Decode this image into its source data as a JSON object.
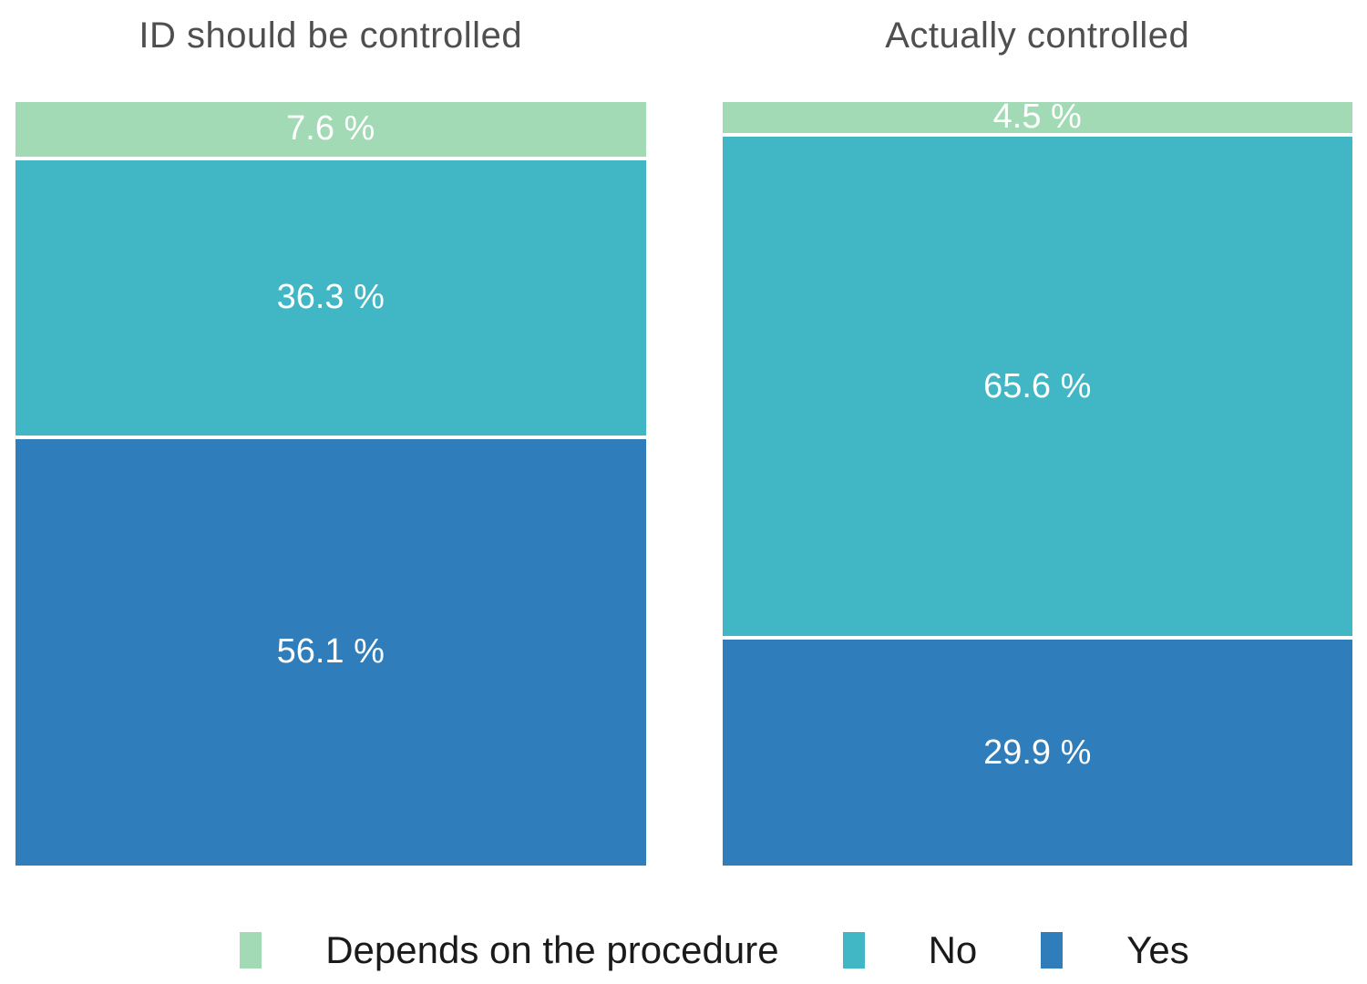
{
  "chart_data": {
    "type": "bar",
    "subtype": "stacked-100-percent",
    "orientation": "vertical",
    "grid": false,
    "legend_position": "bottom",
    "categories": [
      "Depends on the procedure",
      "No",
      "Yes"
    ],
    "colors": {
      "depends": "#a1dab4",
      "no": "#41b6c4",
      "yes": "#2f7ebb"
    },
    "label_color": "#ffffff",
    "title_color": "#4f4f4f",
    "columns": [
      {
        "title": "ID should be controlled",
        "segments": [
          {
            "category": "Depends on the procedure",
            "key": "depends",
            "value": 7.6,
            "label": "7.6 %"
          },
          {
            "category": "No",
            "key": "no",
            "value": 36.3,
            "label": "36.3 %"
          },
          {
            "category": "Yes",
            "key": "yes",
            "value": 56.1,
            "label": "56.1 %"
          }
        ]
      },
      {
        "title": "Actually controlled",
        "segments": [
          {
            "category": "Depends on the procedure",
            "key": "depends",
            "value": 4.5,
            "label": "4.5 %"
          },
          {
            "category": "No",
            "key": "no",
            "value": 65.6,
            "label": "65.6 %"
          },
          {
            "category": "Yes",
            "key": "yes",
            "value": 29.9,
            "label": "29.9 %"
          }
        ]
      }
    ],
    "legend": [
      {
        "label": "Depends on the procedure",
        "key": "depends",
        "color": "#a1dab4"
      },
      {
        "label": "No",
        "key": "no",
        "color": "#41b6c4"
      },
      {
        "label": "Yes",
        "key": "yes",
        "color": "#2f7ebb"
      }
    ]
  }
}
